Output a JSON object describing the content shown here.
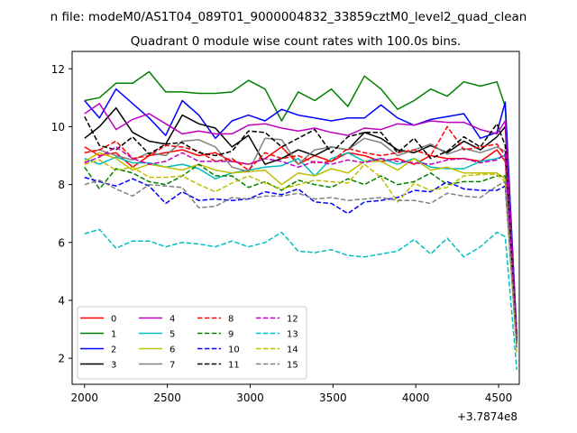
{
  "chart_data": {
    "type": "line",
    "title_line1": "n file: modeM0/AS1T04_089T01_9000004832_33859cztM0_level2_quad_clean",
    "title_line2": "Quadrant 0 module wise count rates with 100.0s bins.",
    "xlabel": "",
    "ylabel": "",
    "x_offset_label": "+3.7874e8",
    "xlim": [
      1925,
      4625
    ],
    "ylim": [
      1.1,
      12.6
    ],
    "xticks": [
      2000,
      2500,
      3000,
      3500,
      4000,
      4500
    ],
    "yticks": [
      2,
      4,
      6,
      8,
      10,
      12
    ],
    "grid": false,
    "legend_position": "lower-left",
    "x": [
      2000,
      2090,
      2190,
      2290,
      2390,
      2490,
      2590,
      2690,
      2790,
      2890,
      2990,
      3090,
      3190,
      3290,
      3390,
      3490,
      3590,
      3690,
      3790,
      3890,
      3990,
      4090,
      4190,
      4290,
      4390,
      4490,
      4540,
      4610
    ],
    "series": [
      {
        "name": "0",
        "color": "#ff0000",
        "dash": false,
        "values": [
          9.3,
          9.0,
          9.1,
          8.6,
          9.0,
          9.1,
          9.2,
          9.0,
          9.1,
          8.8,
          8.7,
          8.9,
          9.3,
          8.7,
          9.0,
          8.8,
          9.1,
          9.0,
          8.8,
          8.9,
          8.7,
          9.0,
          8.9,
          8.9,
          8.8,
          9.2,
          8.8,
          2.8
        ]
      },
      {
        "name": "1",
        "color": "#008000",
        "dash": false,
        "values": [
          10.9,
          11.0,
          11.5,
          11.5,
          11.9,
          11.2,
          11.2,
          11.15,
          11.15,
          11.2,
          11.6,
          11.3,
          10.2,
          11.2,
          10.9,
          11.3,
          10.7,
          11.75,
          11.3,
          10.6,
          10.9,
          11.3,
          11.05,
          11.55,
          11.4,
          11.55,
          10.7,
          2.8
        ]
      },
      {
        "name": "2",
        "color": "#0000ff",
        "dash": false,
        "values": [
          10.9,
          10.3,
          11.3,
          10.8,
          10.3,
          9.7,
          10.9,
          10.4,
          9.6,
          10.2,
          10.4,
          10.2,
          10.6,
          10.4,
          10.3,
          10.2,
          10.3,
          10.3,
          10.75,
          10.3,
          10.05,
          10.25,
          10.35,
          10.45,
          9.6,
          9.8,
          10.85,
          2.8
        ]
      },
      {
        "name": "3",
        "color": "#000000",
        "dash": false,
        "values": [
          9.6,
          10.0,
          10.65,
          9.8,
          9.5,
          9.4,
          10.4,
          10.1,
          9.95,
          9.3,
          9.7,
          8.7,
          8.9,
          9.2,
          9.0,
          9.3,
          9.2,
          9.8,
          9.6,
          9.2,
          9.1,
          9.35,
          9.1,
          9.5,
          9.2,
          9.65,
          10.0,
          2.7
        ]
      },
      {
        "name": "4",
        "color": "#bf00bf",
        "dash": false,
        "values": [
          10.45,
          10.8,
          9.9,
          10.25,
          10.45,
          10.1,
          9.75,
          9.85,
          9.75,
          9.75,
          10.05,
          10.1,
          9.95,
          9.85,
          9.95,
          9.8,
          9.7,
          9.95,
          9.9,
          10.1,
          10.05,
          10.2,
          10.15,
          10.15,
          9.9,
          9.75,
          10.2,
          2.8
        ]
      },
      {
        "name": "5",
        "color": "#00bfbf",
        "dash": false,
        "values": [
          8.9,
          8.7,
          8.95,
          8.75,
          8.75,
          8.6,
          8.7,
          8.55,
          8.2,
          8.4,
          8.5,
          8.6,
          8.65,
          8.9,
          8.3,
          8.9,
          9.1,
          8.8,
          8.9,
          8.7,
          8.9,
          8.6,
          8.55,
          8.55,
          8.8,
          8.9,
          9.0,
          2.6
        ]
      },
      {
        "name": "6",
        "color": "#bfbf00",
        "dash": false,
        "values": [
          8.8,
          9.1,
          8.9,
          8.5,
          8.7,
          8.6,
          8.5,
          8.7,
          8.5,
          8.4,
          8.45,
          8.5,
          8.0,
          8.4,
          8.3,
          8.55,
          8.4,
          8.8,
          8.8,
          8.5,
          8.9,
          8.5,
          8.6,
          8.4,
          8.4,
          8.4,
          8.2,
          2.5
        ]
      },
      {
        "name": "7",
        "color": "#808080",
        "dash": false,
        "values": [
          9.1,
          9.2,
          9.0,
          8.85,
          9.1,
          9.0,
          9.5,
          9.55,
          9.3,
          8.6,
          8.45,
          9.6,
          9.55,
          8.7,
          9.2,
          9.3,
          9.2,
          9.6,
          9.45,
          9.0,
          9.2,
          9.4,
          9.05,
          9.25,
          9.1,
          9.3,
          9.15,
          2.7
        ]
      },
      {
        "name": "8",
        "color": "#ff0000",
        "dash": true,
        "values": [
          9.1,
          9.2,
          9.5,
          8.9,
          9.0,
          9.35,
          9.3,
          9.15,
          8.8,
          8.9,
          8.5,
          9.1,
          8.9,
          9.0,
          8.75,
          8.8,
          9.25,
          9.1,
          9.0,
          9.1,
          9.2,
          9.0,
          10.0,
          9.2,
          9.3,
          9.4,
          9.0,
          2.6
        ]
      },
      {
        "name": "9",
        "color": "#008000",
        "dash": true,
        "values": [
          8.6,
          7.85,
          8.55,
          8.4,
          8.1,
          8.0,
          8.3,
          8.7,
          8.3,
          8.3,
          7.9,
          8.1,
          7.8,
          8.15,
          8.0,
          7.9,
          8.2,
          8.0,
          8.3,
          8.0,
          8.1,
          8.4,
          8.0,
          8.1,
          8.1,
          8.3,
          8.3,
          2.5
        ]
      },
      {
        "name": "10",
        "color": "#0000ff",
        "dash": true,
        "values": [
          8.25,
          8.1,
          7.95,
          8.2,
          7.95,
          7.35,
          7.75,
          7.45,
          7.5,
          7.45,
          7.5,
          7.75,
          7.65,
          7.85,
          7.4,
          7.35,
          7.0,
          7.4,
          7.45,
          7.55,
          7.8,
          7.75,
          8.1,
          7.85,
          7.8,
          7.8,
          7.95,
          2.4
        ]
      },
      {
        "name": "11",
        "color": "#000000",
        "dash": true,
        "values": [
          10.35,
          9.35,
          9.2,
          9.65,
          9.05,
          9.4,
          9.45,
          9.1,
          9.0,
          9.15,
          9.85,
          9.8,
          9.3,
          9.6,
          9.9,
          9.1,
          9.65,
          9.8,
          9.8,
          9.1,
          9.6,
          8.9,
          9.15,
          9.65,
          9.3,
          10.1,
          9.35,
          2.6
        ]
      },
      {
        "name": "12",
        "color": "#bf00bf",
        "dash": true,
        "values": [
          8.75,
          8.95,
          9.3,
          8.9,
          8.7,
          8.8,
          9.1,
          8.8,
          8.8,
          8.8,
          8.7,
          8.9,
          8.8,
          8.6,
          8.8,
          8.7,
          8.85,
          8.75,
          8.9,
          8.8,
          8.75,
          8.7,
          8.85,
          8.9,
          8.75,
          8.85,
          9.05,
          2.5
        ]
      },
      {
        "name": "13",
        "color": "#00bfbf",
        "dash": true,
        "values": [
          6.3,
          6.45,
          5.8,
          6.05,
          6.05,
          5.85,
          6.0,
          5.95,
          5.85,
          6.05,
          5.85,
          6.0,
          6.35,
          5.7,
          5.65,
          5.75,
          5.55,
          5.5,
          5.6,
          5.7,
          6.1,
          5.6,
          6.15,
          5.5,
          5.85,
          6.35,
          6.2,
          1.6
        ]
      },
      {
        "name": "14",
        "color": "#bfbf00",
        "dash": true,
        "values": [
          8.7,
          8.85,
          8.5,
          8.6,
          8.25,
          8.25,
          8.3,
          8.0,
          7.75,
          8.05,
          8.3,
          8.05,
          7.85,
          8.0,
          8.15,
          8.1,
          8.05,
          8.7,
          8.25,
          7.4,
          8.05,
          7.8,
          7.9,
          8.3,
          8.35,
          8.35,
          8.1,
          2.2
        ]
      },
      {
        "name": "15",
        "color": "#808080",
        "dash": true,
        "values": [
          8.0,
          8.15,
          7.85,
          7.6,
          8.0,
          7.95,
          7.9,
          7.2,
          7.25,
          7.55,
          7.5,
          7.6,
          7.6,
          7.7,
          7.5,
          7.55,
          7.45,
          7.5,
          7.55,
          7.45,
          7.45,
          7.35,
          7.7,
          7.6,
          7.55,
          7.95,
          8.1,
          2.3
        ]
      }
    ]
  }
}
